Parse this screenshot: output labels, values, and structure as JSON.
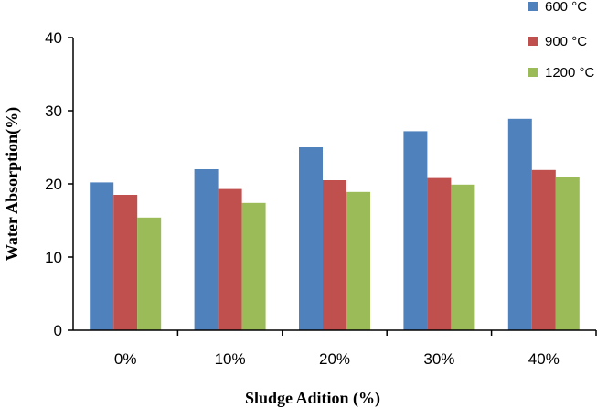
{
  "chart_data": {
    "type": "bar",
    "xlabel": "Sludge Adition (%)",
    "ylabel": "Water Absorption(%)",
    "categories": [
      "0%",
      "10%",
      "20%",
      "30%",
      "40%"
    ],
    "series": [
      {
        "name": "600 °C",
        "color": "#4f81bd",
        "values": [
          20.2,
          22.0,
          25.0,
          27.2,
          28.9
        ]
      },
      {
        "name": "900 °C",
        "color": "#c0504d",
        "values": [
          18.5,
          19.3,
          20.5,
          20.8,
          21.9
        ]
      },
      {
        "name": "1200 °C",
        "color": "#9bbb59",
        "values": [
          15.4,
          17.4,
          18.9,
          19.9,
          20.9
        ]
      }
    ],
    "ylim": [
      0,
      40
    ],
    "yticks": [
      "0",
      "10",
      "20",
      "30",
      "40"
    ],
    "grid": false,
    "legend_position": "top-right"
  }
}
